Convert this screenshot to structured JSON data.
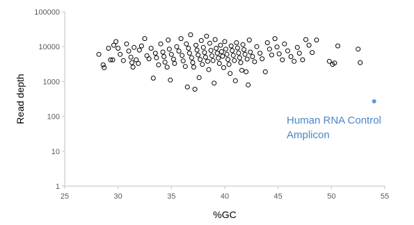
{
  "chart_data": {
    "type": "scatter",
    "title": "",
    "xlabel": "%GC",
    "ylabel": "Read depth",
    "xlim": [
      25,
      55
    ],
    "ylim": [
      1,
      100000
    ],
    "y_scale": "log",
    "x_ticks": [
      "25",
      "30",
      "35",
      "40",
      "45",
      "50",
      "55"
    ],
    "y_ticks": [
      "1",
      "10",
      "100",
      "1000",
      "10000",
      "100000"
    ],
    "grid": false,
    "legend": "none",
    "series": [
      {
        "marker": "open-circle",
        "color": "#000000",
        "points": [
          [
            28.2,
            6000
          ],
          [
            28.6,
            3000
          ],
          [
            28.7,
            2500
          ],
          [
            29.1,
            9000
          ],
          [
            29.3,
            4200
          ],
          [
            29.5,
            4200
          ],
          [
            29.6,
            11000
          ],
          [
            29.8,
            14000
          ],
          [
            30.0,
            9000
          ],
          [
            30.2,
            6000
          ],
          [
            30.5,
            4000
          ],
          [
            30.8,
            12000
          ],
          [
            31.0,
            7500
          ],
          [
            31.2,
            5000
          ],
          [
            31.3,
            3500
          ],
          [
            31.4,
            2600
          ],
          [
            31.5,
            9500
          ],
          [
            31.7,
            4200
          ],
          [
            31.9,
            3300
          ],
          [
            32.0,
            8000
          ],
          [
            32.2,
            10500
          ],
          [
            32.5,
            17000
          ],
          [
            32.7,
            5500
          ],
          [
            32.9,
            4500
          ],
          [
            33.1,
            9000
          ],
          [
            33.3,
            1250
          ],
          [
            33.5,
            6500
          ],
          [
            33.6,
            4800
          ],
          [
            33.8,
            3000
          ],
          [
            34.0,
            12000
          ],
          [
            34.2,
            7000
          ],
          [
            34.3,
            5200
          ],
          [
            34.4,
            3600
          ],
          [
            34.6,
            2600
          ],
          [
            34.7,
            15500
          ],
          [
            34.8,
            8500
          ],
          [
            34.9,
            1100
          ],
          [
            35.0,
            6000
          ],
          [
            35.2,
            4400
          ],
          [
            35.3,
            3300
          ],
          [
            35.5,
            10000
          ],
          [
            35.7,
            7500
          ],
          [
            35.9,
            17000
          ],
          [
            36.0,
            5600
          ],
          [
            36.1,
            3900
          ],
          [
            36.3,
            2700
          ],
          [
            36.4,
            12000
          ],
          [
            36.5,
            700
          ],
          [
            36.6,
            9000
          ],
          [
            36.7,
            6500
          ],
          [
            36.8,
            22000
          ],
          [
            36.9,
            4800
          ],
          [
            37.0,
            3500
          ],
          [
            37.1,
            2600
          ],
          [
            37.2,
            600
          ],
          [
            37.3,
            11000
          ],
          [
            37.4,
            8000
          ],
          [
            37.5,
            5800
          ],
          [
            37.6,
            1300
          ],
          [
            37.7,
            4300
          ],
          [
            37.8,
            15000
          ],
          [
            37.9,
            3100
          ],
          [
            38.0,
            9500
          ],
          [
            38.1,
            6800
          ],
          [
            38.2,
            5000
          ],
          [
            38.3,
            20000
          ],
          [
            38.4,
            3800
          ],
          [
            38.5,
            2200
          ],
          [
            38.6,
            12500
          ],
          [
            38.7,
            7800
          ],
          [
            38.8,
            5500
          ],
          [
            38.9,
            4000
          ],
          [
            39.0,
            900
          ],
          [
            39.1,
            16000
          ],
          [
            39.2,
            9000
          ],
          [
            39.3,
            6500
          ],
          [
            39.4,
            4700
          ],
          [
            39.5,
            3300
          ],
          [
            39.6,
            11000
          ],
          [
            39.7,
            7200
          ],
          [
            39.8,
            5300
          ],
          [
            39.9,
            2500
          ],
          [
            40.0,
            14000
          ],
          [
            40.1,
            8500
          ],
          [
            40.2,
            6000
          ],
          [
            40.3,
            4300
          ],
          [
            40.4,
            3100
          ],
          [
            40.5,
            1700
          ],
          [
            40.6,
            10500
          ],
          [
            40.7,
            7700
          ],
          [
            40.8,
            5600
          ],
          [
            40.9,
            4000
          ],
          [
            41.0,
            1050
          ],
          [
            41.1,
            13000
          ],
          [
            41.2,
            9200
          ],
          [
            41.3,
            6600
          ],
          [
            41.4,
            4800
          ],
          [
            41.5,
            3500
          ],
          [
            41.6,
            2100
          ],
          [
            41.7,
            11500
          ],
          [
            41.8,
            8200
          ],
          [
            41.9,
            6000
          ],
          [
            42.0,
            1900
          ],
          [
            42.1,
            4400
          ],
          [
            42.2,
            800
          ],
          [
            42.3,
            15500
          ],
          [
            42.4,
            7000
          ],
          [
            42.6,
            5200
          ],
          [
            42.8,
            3700
          ],
          [
            43.0,
            10000
          ],
          [
            43.3,
            6500
          ],
          [
            43.5,
            4500
          ],
          [
            43.8,
            1900
          ],
          [
            44.0,
            13000
          ],
          [
            44.2,
            8500
          ],
          [
            44.4,
            5800
          ],
          [
            44.7,
            17000
          ],
          [
            44.9,
            9800
          ],
          [
            45.1,
            6200
          ],
          [
            45.4,
            4200
          ],
          [
            45.6,
            12000
          ],
          [
            45.9,
            7600
          ],
          [
            46.2,
            5200
          ],
          [
            46.5,
            3800
          ],
          [
            46.8,
            9500
          ],
          [
            47.0,
            6500
          ],
          [
            47.3,
            4200
          ],
          [
            47.6,
            16000
          ],
          [
            47.9,
            11000
          ],
          [
            48.2,
            6800
          ],
          [
            48.6,
            15500
          ],
          [
            49.8,
            3800
          ],
          [
            50.1,
            3100
          ],
          [
            50.3,
            3400
          ],
          [
            50.6,
            10500
          ],
          [
            52.5,
            8500
          ],
          [
            52.7,
            3500
          ]
        ]
      },
      {
        "marker": "filled-circle",
        "color": "#5b9bd5",
        "points": [
          [
            54.0,
            270
          ]
        ]
      }
    ],
    "annotation": {
      "lines": [
        "Human RNA Control",
        "Amplicon"
      ],
      "color": "#4a86c8"
    }
  }
}
